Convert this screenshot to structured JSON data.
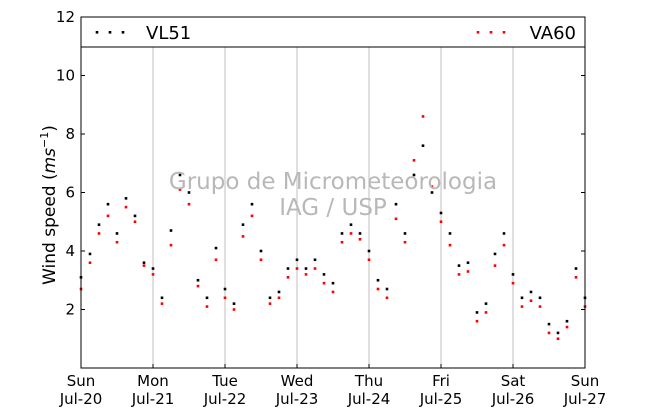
{
  "chart_data": {
    "type": "scatter",
    "title": "",
    "ylabel": "Wind speed",
    "ylabel_unit_base": "ms",
    "ylabel_unit_exp": "−1",
    "ylim": [
      0,
      12
    ],
    "yticks": [
      2,
      4,
      6,
      8,
      10,
      12
    ],
    "xlim": [
      0,
      7
    ],
    "grid": "vertical",
    "legend_placement": "top",
    "xticks": [
      {
        "day": "Sun",
        "date": "Jul-20"
      },
      {
        "day": "Mon",
        "date": "Jul-21"
      },
      {
        "day": "Tue",
        "date": "Jul-22"
      },
      {
        "day": "Wed",
        "date": "Jul-23"
      },
      {
        "day": "Thu",
        "date": "Jul-24"
      },
      {
        "day": "Fri",
        "date": "Jul-25"
      },
      {
        "day": "Sat",
        "date": "Jul-26"
      },
      {
        "day": "Sun",
        "date": "Jul-27"
      }
    ],
    "series": [
      {
        "name": "VL51",
        "color": "#000000",
        "x": [
          0.0,
          0.125,
          0.25,
          0.375,
          0.5,
          0.625,
          0.75,
          0.875,
          1.0,
          1.125,
          1.25,
          1.375,
          1.5,
          1.625,
          1.75,
          1.875,
          2.0,
          2.125,
          2.25,
          2.375,
          2.5,
          2.625,
          2.75,
          2.875,
          3.0,
          3.125,
          3.25,
          3.375,
          3.5,
          3.625,
          3.75,
          3.875,
          4.0,
          4.125,
          4.25,
          4.375,
          4.5,
          4.625,
          4.75,
          4.875,
          5.0,
          5.125,
          5.25,
          5.375,
          5.5,
          5.625,
          5.75,
          5.875,
          6.0,
          6.125,
          6.25,
          6.375,
          6.5,
          6.625,
          6.75,
          6.875,
          7.0
        ],
        "y": [
          3.1,
          3.9,
          4.9,
          5.6,
          4.6,
          5.8,
          5.2,
          3.6,
          3.4,
          2.4,
          4.7,
          6.6,
          6.0,
          3.0,
          2.4,
          4.1,
          2.7,
          2.2,
          4.9,
          5.6,
          4.0,
          2.4,
          2.6,
          3.4,
          3.7,
          3.4,
          3.7,
          3.2,
          2.9,
          4.6,
          4.9,
          4.6,
          4.0,
          3.0,
          2.7,
          5.6,
          4.6,
          6.6,
          7.6,
          6.0,
          5.3,
          4.6,
          3.5,
          3.6,
          1.9,
          2.2,
          3.9,
          4.6,
          3.2,
          2.4,
          2.6,
          2.4,
          1.5,
          1.2,
          1.6,
          3.4,
          2.4
        ]
      },
      {
        "name": "VA60",
        "color": "#ff0000",
        "x": [
          0.0,
          0.125,
          0.25,
          0.375,
          0.5,
          0.625,
          0.75,
          0.875,
          1.0,
          1.125,
          1.25,
          1.375,
          1.5,
          1.625,
          1.75,
          1.875,
          2.0,
          2.125,
          2.25,
          2.375,
          2.5,
          2.625,
          2.75,
          2.875,
          3.0,
          3.125,
          3.25,
          3.375,
          3.5,
          3.625,
          3.75,
          3.875,
          4.0,
          4.125,
          4.25,
          4.375,
          4.5,
          4.625,
          4.75,
          4.875,
          5.0,
          5.125,
          5.25,
          5.375,
          5.5,
          5.625,
          5.75,
          5.875,
          6.0,
          6.125,
          6.25,
          6.375,
          6.5,
          6.625,
          6.75,
          6.875,
          7.0
        ],
        "y": [
          2.7,
          3.6,
          4.6,
          5.2,
          4.3,
          5.5,
          5.0,
          3.5,
          3.2,
          2.2,
          4.2,
          6.1,
          5.6,
          2.8,
          2.1,
          3.7,
          2.4,
          2.0,
          4.5,
          5.2,
          3.7,
          2.2,
          2.4,
          3.1,
          3.4,
          3.2,
          3.4,
          2.9,
          2.6,
          4.3,
          4.6,
          4.4,
          3.7,
          2.7,
          2.4,
          5.1,
          4.3,
          7.1,
          8.6,
          6.2,
          5.0,
          4.2,
          3.2,
          3.3,
          1.6,
          1.9,
          3.5,
          4.2,
          2.9,
          2.1,
          2.3,
          2.1,
          1.2,
          1.0,
          1.4,
          3.1,
          2.1
        ]
      }
    ]
  },
  "watermark": {
    "line1": "Grupo de Micrometeorologia",
    "line2": "IAG / USP"
  }
}
